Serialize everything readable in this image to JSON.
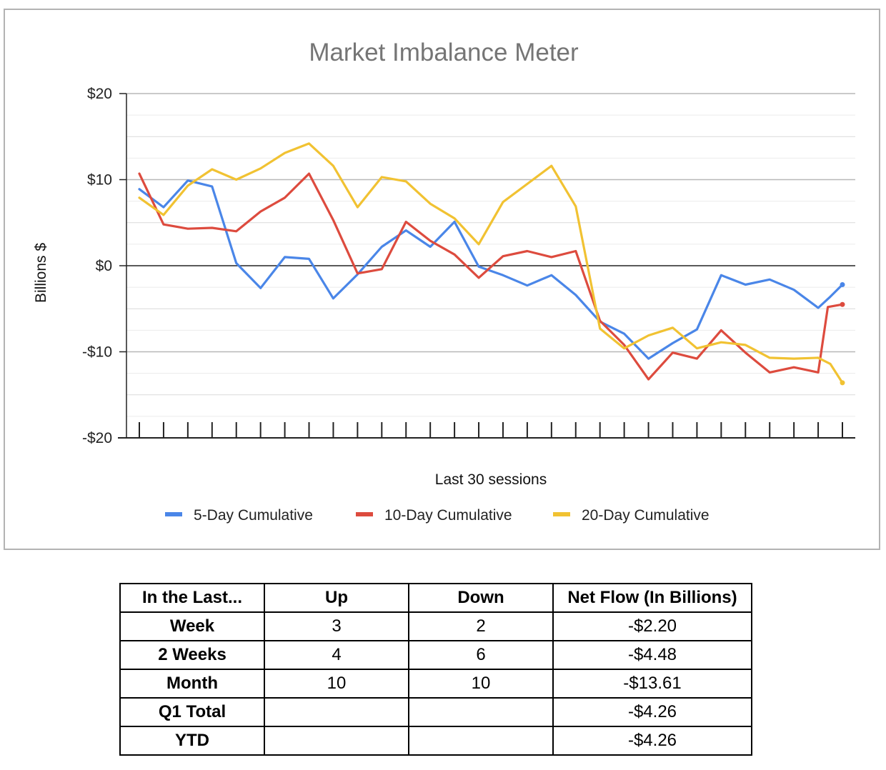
{
  "chart_data": {
    "type": "line",
    "title": "Market Imbalance Meter",
    "xlabel": "Last 30 sessions",
    "ylabel": "Billions $",
    "ylim": [
      -20,
      20
    ],
    "y_ticks": [
      {
        "value": 20,
        "label": "$20"
      },
      {
        "value": 10,
        "label": "$10"
      },
      {
        "value": 0,
        "label": "$0"
      },
      {
        "value": -10,
        "label": "-$10"
      },
      {
        "value": -20,
        "label": "-$20"
      }
    ],
    "minor_gridlines": true,
    "legend_position": "bottom",
    "x": [
      1,
      2,
      3,
      4,
      5,
      6,
      7,
      8,
      9,
      10,
      11,
      12,
      13,
      14,
      15,
      16,
      17,
      18,
      19,
      20,
      21,
      22,
      23,
      24,
      25,
      26,
      27,
      28,
      29,
      30
    ],
    "series": [
      {
        "name": "5-Day Cumulative",
        "color": "#4a86e8",
        "values": [
          8.9,
          6.8,
          9.9,
          9.2,
          0.3,
          -2.6,
          1.0,
          0.8,
          -3.8,
          -1.0,
          2.2,
          4.1,
          2.2,
          5.1,
          -0.1,
          -1.1,
          -2.3,
          -1.1,
          -3.4,
          -6.5,
          -7.9,
          -10.8,
          -9.0,
          -7.4,
          -1.1,
          -2.2,
          -1.6,
          -2.8,
          -4.9,
          -3.6,
          -2.2
        ],
        "x": [
          1,
          2,
          3,
          4,
          5,
          6,
          7,
          8,
          9,
          10,
          11,
          12,
          13,
          14,
          15,
          16,
          17,
          18,
          19,
          20,
          21,
          22,
          23,
          24,
          25,
          26,
          27,
          28,
          29,
          29.5,
          30
        ]
      },
      {
        "name": "10-Day Cumulative",
        "color": "#dd4b3e",
        "values": [
          10.7,
          4.8,
          4.3,
          4.4,
          4.0,
          6.3,
          7.9,
          10.7,
          5.3,
          -0.9,
          -0.4,
          5.1,
          2.9,
          1.3,
          -1.4,
          1.1,
          1.7,
          1.0,
          1.7,
          -6.4,
          -9.2,
          -13.2,
          -10.1,
          -10.8,
          -7.5,
          -10.1,
          -12.4,
          -11.8,
          -12.4,
          -4.8,
          -4.5
        ],
        "x": [
          1,
          2,
          3,
          4,
          5,
          6,
          7,
          8,
          9,
          10,
          11,
          12,
          13,
          14,
          15,
          16,
          17,
          18,
          19,
          20,
          21,
          22,
          23,
          24,
          25,
          26,
          27,
          28,
          29,
          29.4,
          30
        ]
      },
      {
        "name": "20-Day Cumulative",
        "color": "#f1c232",
        "values": [
          7.9,
          5.9,
          9.3,
          11.2,
          10.0,
          11.3,
          13.1,
          14.2,
          11.6,
          6.8,
          10.3,
          9.8,
          7.2,
          5.5,
          2.5,
          7.4,
          9.5,
          11.6,
          6.9,
          -7.3,
          -9.6,
          -8.1,
          -7.2,
          -9.6,
          -8.9,
          -9.2,
          -10.7,
          -10.8,
          -10.7,
          -11.4,
          -13.6
        ],
        "x": [
          1,
          2,
          3,
          4,
          5,
          6,
          7,
          8,
          9,
          10,
          11,
          12,
          13,
          14,
          15,
          16,
          17,
          18,
          19,
          20,
          21,
          22,
          23,
          24,
          25,
          26,
          27,
          28,
          29,
          29.5,
          30
        ]
      }
    ]
  },
  "table": {
    "headers": [
      "In the Last...",
      "Up",
      "Down",
      "Net Flow (In Billions)"
    ],
    "rows": [
      [
        "Week",
        "3",
        "2",
        "-$2.20"
      ],
      [
        "2 Weeks",
        "4",
        "6",
        "-$4.48"
      ],
      [
        "Month",
        "10",
        "10",
        "-$13.61"
      ],
      [
        "Q1 Total",
        "",
        "",
        "-$4.26"
      ],
      [
        "YTD",
        "",
        "",
        "-$4.26"
      ]
    ]
  }
}
